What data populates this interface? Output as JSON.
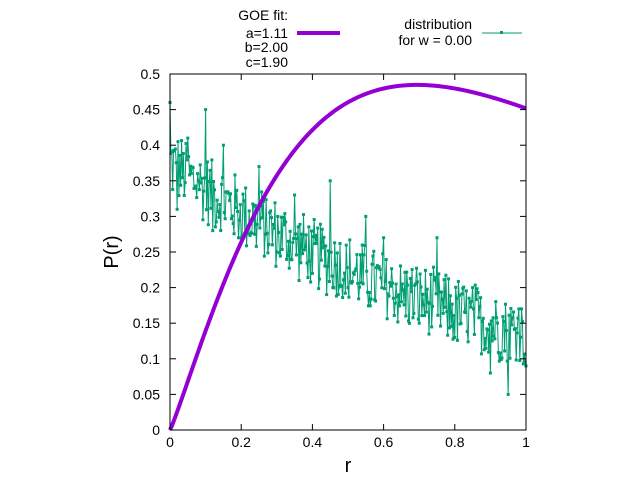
{
  "chart_data": {
    "type": "line",
    "xlabel": "r",
    "ylabel": "P(r)",
    "xlim": [
      0,
      1
    ],
    "ylim": [
      0,
      0.5
    ],
    "x_ticks": [
      "0",
      "0.2",
      "0.4",
      "0.6",
      "0.8",
      "1"
    ],
    "y_ticks": [
      "0",
      "0.05",
      "0.1",
      "0.15",
      "0.2",
      "0.25",
      "0.3",
      "0.35",
      "0.4",
      "0.45",
      "0.5"
    ],
    "grid": false,
    "legend_placement": "top, outside plot",
    "fit": {
      "legend_lines": [
        "GOE fit:",
        "a=1.11",
        "b=2.00",
        "c=1.90"
      ],
      "a": 1.11,
      "b": 2.0,
      "c": 1.9,
      "color": "#9400d3"
    },
    "distribution": {
      "legend_lines": [
        "distribution",
        "for w = 0.00"
      ],
      "color": "#009e73",
      "noise_amplitude": 0.045,
      "x": [
        0.0,
        0.02,
        0.05,
        0.08,
        0.1,
        0.12,
        0.15,
        0.2,
        0.25,
        0.3,
        0.35,
        0.4,
        0.45,
        0.5,
        0.55,
        0.6,
        0.65,
        0.7,
        0.75,
        0.8,
        0.85,
        0.9,
        0.95,
        0.98,
        1.0
      ],
      "y": [
        0.46,
        0.31,
        0.41,
        0.35,
        0.45,
        0.28,
        0.4,
        0.27,
        0.37,
        0.25,
        0.33,
        0.22,
        0.35,
        0.2,
        0.3,
        0.27,
        0.18,
        0.15,
        0.27,
        0.13,
        0.2,
        0.08,
        0.05,
        0.17,
        0.09
      ]
    }
  }
}
